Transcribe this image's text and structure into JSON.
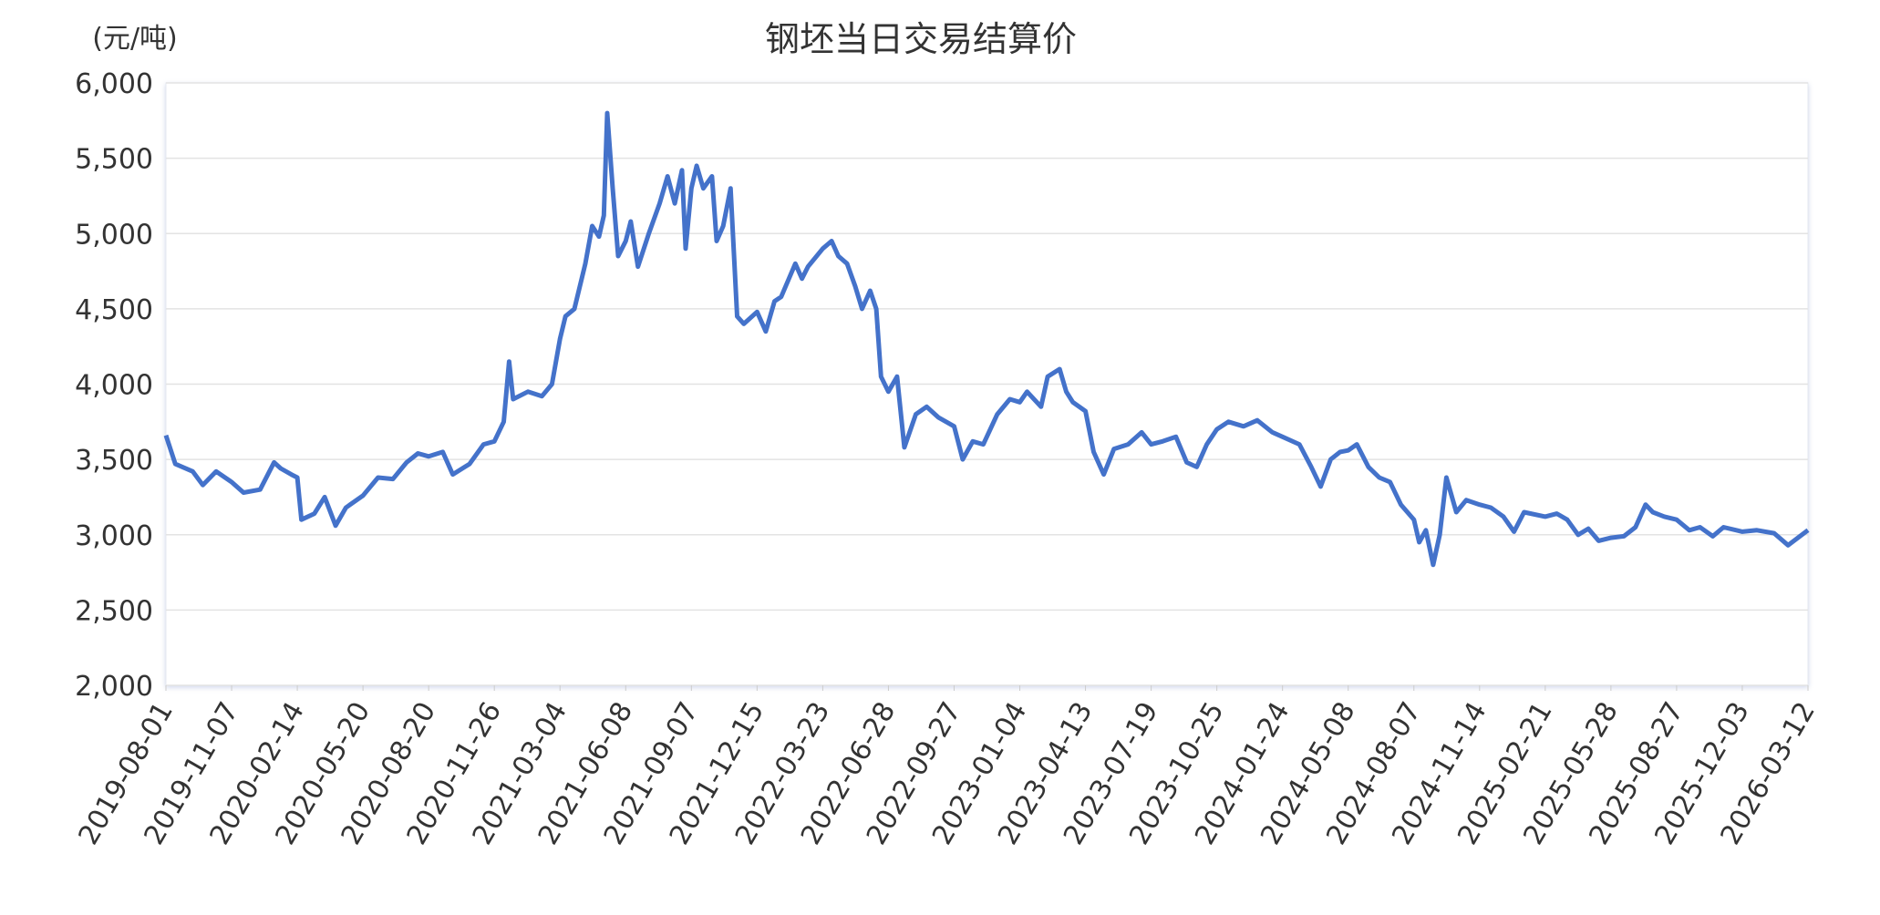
{
  "chart_data": {
    "type": "line",
    "title": "钢坯当日交易结算价",
    "y_label": "(元/吨)",
    "xlim": [
      "2019-08-01",
      "2026-03-12"
    ],
    "xticks": [
      "2019-08-01",
      "2019-11-07",
      "2020-02-14",
      "2020-05-20",
      "2020-08-20",
      "2020-11-26",
      "2021-03-04",
      "2021-06-08",
      "2021-09-07",
      "2021-12-15",
      "2022-03-23",
      "2022-06-28",
      "2022-09-27",
      "2023-01-04",
      "2023-04-13",
      "2023-07-19",
      "2023-10-25",
      "2024-01-24",
      "2024-05-08",
      "2024-08-07",
      "2024-11-14",
      "2025-02-21",
      "2025-05-28",
      "2025-08-27",
      "2025-12-03",
      "2026-03-12"
    ],
    "ylim": [
      2000,
      6000
    ],
    "yticks": [
      {
        "value": 2000,
        "label": "2,000"
      },
      {
        "value": 2500,
        "label": "2,500"
      },
      {
        "value": 3000,
        "label": "3,000"
      },
      {
        "value": 3500,
        "label": "3,500"
      },
      {
        "value": 4000,
        "label": "4,000"
      },
      {
        "value": 4500,
        "label": "4,500"
      },
      {
        "value": 5000,
        "label": "5,000"
      },
      {
        "value": 5500,
        "label": "5,500"
      },
      {
        "value": 6000,
        "label": "6,000"
      }
    ],
    "grid": true,
    "x": [
      "2019-08-01",
      "2019-08-15",
      "2019-09-10",
      "2019-09-25",
      "2019-10-15",
      "2019-11-07",
      "2019-11-25",
      "2019-12-20",
      "2020-01-10",
      "2020-01-20",
      "2020-02-05",
      "2020-02-14",
      "2020-02-20",
      "2020-03-10",
      "2020-03-25",
      "2020-04-10",
      "2020-04-25",
      "2020-05-20",
      "2020-06-10",
      "2020-07-01",
      "2020-07-20",
      "2020-08-05",
      "2020-08-20",
      "2020-09-10",
      "2020-09-25",
      "2020-10-20",
      "2020-11-10",
      "2020-11-26",
      "2020-12-10",
      "2020-12-18",
      "2020-12-24",
      "2021-01-15",
      "2021-02-05",
      "2021-02-20",
      "2021-03-04",
      "2021-03-12",
      "2021-03-25",
      "2021-04-10",
      "2021-04-20",
      "2021-04-30",
      "2021-05-07",
      "2021-05-12",
      "2021-05-20",
      "2021-05-28",
      "2021-06-08",
      "2021-06-15",
      "2021-06-25",
      "2021-07-10",
      "2021-07-25",
      "2021-08-05",
      "2021-08-15",
      "2021-08-25",
      "2021-08-30",
      "2021-09-07",
      "2021-09-15",
      "2021-09-25",
      "2021-10-08",
      "2021-10-15",
      "2021-10-25",
      "2021-11-05",
      "2021-11-15",
      "2021-11-25",
      "2021-12-15",
      "2021-12-28",
      "2022-01-10",
      "2022-01-20",
      "2022-02-10",
      "2022-02-20",
      "2022-03-01",
      "2022-03-23",
      "2022-04-05",
      "2022-04-15",
      "2022-04-28",
      "2022-05-10",
      "2022-05-20",
      "2022-06-01",
      "2022-06-10",
      "2022-06-17",
      "2022-06-28",
      "2022-07-10",
      "2022-07-20",
      "2022-08-05",
      "2022-08-20",
      "2022-09-05",
      "2022-09-27",
      "2022-10-10",
      "2022-10-25",
      "2022-11-10",
      "2022-12-01",
      "2022-12-20",
      "2023-01-04",
      "2023-01-15",
      "2023-02-05",
      "2023-02-15",
      "2023-03-05",
      "2023-03-15",
      "2023-03-25",
      "2023-04-13",
      "2023-04-25",
      "2023-05-10",
      "2023-05-25",
      "2023-06-15",
      "2023-07-05",
      "2023-07-19",
      "2023-08-05",
      "2023-08-25",
      "2023-09-10",
      "2023-09-25",
      "2023-10-10",
      "2023-10-25",
      "2023-11-10",
      "2023-12-01",
      "2023-12-20",
      "2024-01-10",
      "2024-01-24",
      "2024-02-20",
      "2024-03-10",
      "2024-03-25",
      "2024-04-10",
      "2024-04-25",
      "2024-05-08",
      "2024-05-20",
      "2024-06-05",
      "2024-06-20",
      "2024-07-05",
      "2024-07-20",
      "2024-08-07",
      "2024-08-15",
      "2024-08-25",
      "2024-09-05",
      "2024-09-15",
      "2024-09-25",
      "2024-10-10",
      "2024-10-25",
      "2024-11-14",
      "2024-12-01",
      "2024-12-20",
      "2025-01-05",
      "2025-01-20",
      "2025-02-21",
      "2025-03-10",
      "2025-03-25",
      "2025-04-10",
      "2025-04-25",
      "2025-05-10",
      "2025-05-28",
      "2025-06-15",
      "2025-07-01",
      "2025-07-15",
      "2025-07-25",
      "2025-08-10",
      "2025-08-27",
      "2025-09-15",
      "2025-10-01",
      "2025-10-20",
      "2025-11-05",
      "2025-12-03",
      "2025-12-25",
      "2026-01-20",
      "2026-02-10",
      "2026-03-12"
    ],
    "series": [
      {
        "color": "#4472ca",
        "values": [
          3660,
          3470,
          3420,
          3330,
          3420,
          3350,
          3280,
          3300,
          3480,
          3440,
          3400,
          3380,
          3100,
          3140,
          3250,
          3060,
          3180,
          3260,
          3380,
          3370,
          3480,
          3540,
          3520,
          3550,
          3400,
          3470,
          3600,
          3620,
          3750,
          4150,
          3900,
          3950,
          3920,
          4000,
          4300,
          4450,
          4500,
          4800,
          5050,
          4980,
          5120,
          5800,
          5300,
          4850,
          4950,
          5080,
          4780,
          5000,
          5200,
          5380,
          5200,
          5420,
          4900,
          5300,
          5450,
          5300,
          5380,
          4950,
          5050,
          5300,
          4450,
          4400,
          4480,
          4350,
          4550,
          4580,
          4800,
          4700,
          4780,
          4900,
          4950,
          4850,
          4800,
          4650,
          4500,
          4620,
          4500,
          4050,
          3950,
          4050,
          3580,
          3800,
          3850,
          3780,
          3720,
          3500,
          3620,
          3600,
          3800,
          3900,
          3880,
          3950,
          3850,
          4050,
          4100,
          3950,
          3880,
          3820,
          3550,
          3400,
          3570,
          3600,
          3680,
          3600,
          3620,
          3650,
          3480,
          3450,
          3600,
          3700,
          3750,
          3720,
          3760,
          3680,
          3650,
          3600,
          3450,
          3320,
          3500,
          3550,
          3560,
          3600,
          3450,
          3380,
          3350,
          3200,
          3100,
          2950,
          3030,
          2800,
          3000,
          3380,
          3150,
          3230,
          3200,
          3180,
          3120,
          3020,
          3150,
          3120,
          3140,
          3100,
          3000,
          3040,
          2960,
          2980,
          2990,
          3050,
          3200,
          3150,
          3120,
          3100,
          3030,
          3050,
          2990,
          3050,
          3020,
          3030,
          3010,
          2930,
          3030
        ]
      }
    ]
  }
}
